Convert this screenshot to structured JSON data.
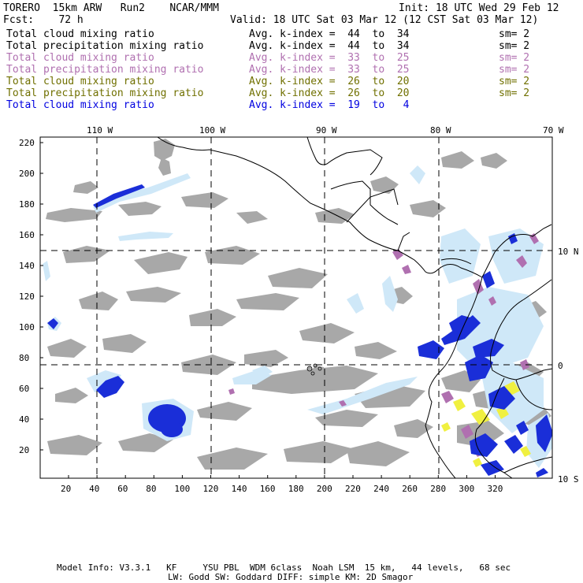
{
  "header": {
    "model": "TORERO  15km ARW   Run2    NCAR/MMM",
    "init": "Init: 18 UTC Wed 29 Feb 12",
    "fcst": "Fcst:    72 h",
    "valid": "Valid: 18 UTC Sat 03 Mar 12 (12 CST Sat 03 Mar 12)"
  },
  "legend": [
    {
      "field": "Total cloud mixing ratio",
      "kindex": "Avg. k-index =  44  to  34",
      "sm": "sm= 2",
      "color": "#000000"
    },
    {
      "field": "Total precipitation mixing ratio",
      "kindex": "Avg. k-index =  44  to  34",
      "sm": "sm= 2",
      "color": "#000000"
    },
    {
      "field": "Total cloud mixing ratio",
      "kindex": "Avg. k-index =  33  to  25",
      "sm": "sm= 2",
      "color": "#b070b0"
    },
    {
      "field": "Total precipitation mixing ratio",
      "kindex": "Avg. k-index =  33  to  25",
      "sm": "sm= 2",
      "color": "#b070b0"
    },
    {
      "field": "Total cloud mixing ratio",
      "kindex": "Avg. k-index =  26  to  20",
      "sm": "sm= 2",
      "color": "#707000"
    },
    {
      "field": "Total precipitation mixing ratio",
      "kindex": "Avg. k-index =  26  to  20",
      "sm": "sm= 2",
      "color": "#707000"
    },
    {
      "field": "Total cloud mixing ratio",
      "kindex": "Avg. k-index =  19  to   4",
      "sm": "",
      "color": "#0000e0"
    }
  ],
  "map": {
    "lon_labels": [
      "110 W",
      "100 W",
      "90 W",
      "80 W",
      "70 W"
    ],
    "lat_labels": [
      "10 N",
      "0",
      "10 S"
    ],
    "y_ticks": [
      "220",
      "200",
      "180",
      "160",
      "140",
      "120",
      "100",
      "80",
      "60",
      "40",
      "20"
    ],
    "x_ticks": [
      "20",
      "40",
      "60",
      "80",
      "100",
      "120",
      "140",
      "160",
      "180",
      "200",
      "220",
      "240",
      "260",
      "280",
      "300",
      "320"
    ],
    "colors": {
      "cloud_gray": "#a8a8a8",
      "light_blue": "#cfe8f8",
      "blue": "#1a2ed8",
      "purple": "#b070b0",
      "yellow": "#f0f040",
      "coast": "#000000"
    }
  },
  "footer": {
    "line1": "Model Info: V3.3.1   KF     YSU PBL  WDM 6class  Noah LSM  15 km,   44 levels,   68 sec",
    "line2": "LW: Godd SW: Goddard DIFF: simple KM: 2D Smagor"
  }
}
